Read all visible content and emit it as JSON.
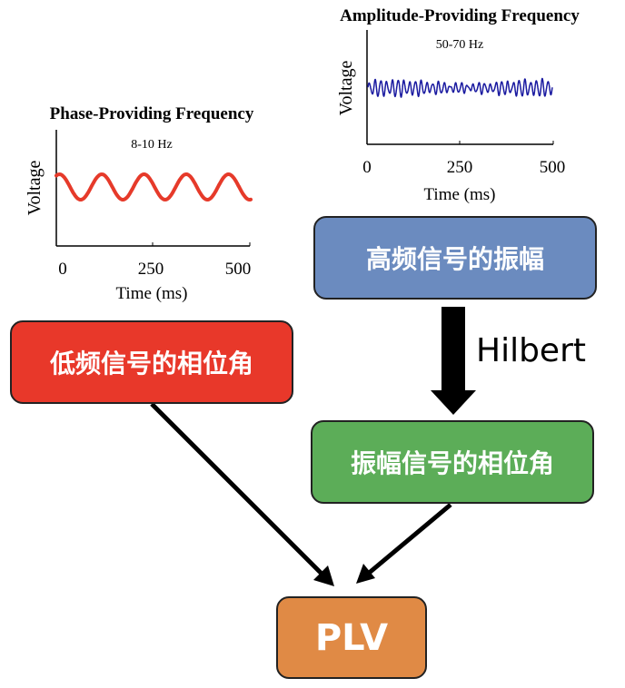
{
  "phase_plot": {
    "title": "Phase-Providing Frequency",
    "band": "8-10 Hz",
    "ylabel": "Voltage",
    "xlabel": "Time (ms)",
    "ticks": [
      "0",
      "250",
      "500"
    ],
    "color": "#e63a2a"
  },
  "amp_plot": {
    "title": "Amplitude-Providing Frequency",
    "band": "50-70 Hz",
    "ylabel": "Voltage",
    "xlabel": "Time (ms)",
    "ticks": [
      "0",
      "250",
      "500"
    ],
    "color": "#1a1aa0"
  },
  "boxes": {
    "high_amp": {
      "label": "高频信号的振幅",
      "color": "#6b8bbf"
    },
    "low_phase": {
      "label": "低频信号的相位角",
      "color": "#e8382a"
    },
    "amp_phase": {
      "label": "振幅信号的相位角",
      "color": "#5cad58"
    },
    "plv": {
      "label": "PLV",
      "color": "#e08a45"
    }
  },
  "hilbert_label": "Hilbert"
}
